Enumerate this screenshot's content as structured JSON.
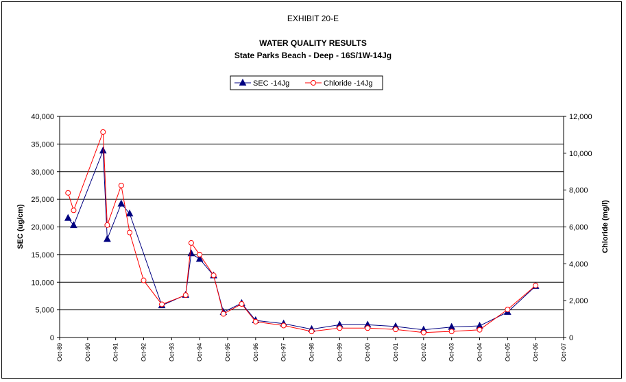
{
  "chart_data": {
    "type": "line",
    "exhibit": "EXHIBIT 20-E",
    "title": "WATER QUALITY RESULTS",
    "subtitle": "State Parks Beach - Deep - 16S/1W-14Jg",
    "ylabel": "SEC (ug/cm)",
    "y2label": "Chloride (mg/l)",
    "ylim": [
      0,
      40000
    ],
    "y2lim": [
      0,
      12000
    ],
    "yticks": [
      "0",
      "5,000",
      "10,000",
      "15,000",
      "20,000",
      "25,000",
      "30,000",
      "35,000",
      "40,000"
    ],
    "y2ticks": [
      "0",
      "2,000",
      "4,000",
      "6,000",
      "8,000",
      "10,000",
      "12,000"
    ],
    "xticks": [
      "Oct-89",
      "Oct-90",
      "Oct-91",
      "Oct-92",
      "Oct-93",
      "Oct-94",
      "Oct-95",
      "Oct-96",
      "Oct-97",
      "Oct-98",
      "Oct-99",
      "Oct-00",
      "Oct-01",
      "Oct-02",
      "Oct-03",
      "Oct-04",
      "Oct-05",
      "Oct-06",
      "Oct-07"
    ],
    "xlim": [
      1989.75,
      2007.75
    ],
    "grid": true,
    "legend_position": "top-center",
    "series": [
      {
        "name": "SEC -14Jg",
        "axis": "left",
        "color": "#000080",
        "marker": "triangle",
        "x": [
          1990.05,
          1990.25,
          1991.3,
          1991.45,
          1991.95,
          1992.25,
          1993.4,
          1994.25,
          1994.45,
          1994.75,
          1995.25,
          1995.6,
          1996.25,
          1996.75,
          1997.75,
          1998.75,
          1999.75,
          2000.75,
          2001.75,
          2002.75,
          2003.75,
          2004.75,
          2005.75,
          2006.75
        ],
        "y": [
          21600,
          20300,
          33800,
          17800,
          24200,
          22400,
          5800,
          7700,
          15200,
          14200,
          11200,
          4600,
          6200,
          3100,
          2500,
          1500,
          2300,
          2300,
          2000,
          1400,
          1900,
          2100,
          4600,
          9300
        ]
      },
      {
        "name": "Chloride -14Jg",
        "axis": "right",
        "color": "#ff0000",
        "marker": "circle",
        "x": [
          1990.05,
          1990.25,
          1991.3,
          1991.45,
          1991.95,
          1992.25,
          1992.75,
          1993.4,
          1994.25,
          1994.45,
          1994.75,
          1995.25,
          1995.6,
          1996.25,
          1996.75,
          1997.75,
          1998.75,
          1999.75,
          2000.75,
          2001.75,
          2002.75,
          2003.75,
          2004.75,
          2005.75,
          2006.75
        ],
        "y": [
          7850,
          6900,
          11150,
          6100,
          8250,
          5700,
          3100,
          1800,
          2300,
          5130,
          4500,
          3370,
          1280,
          1820,
          860,
          650,
          330,
          510,
          510,
          440,
          270,
          330,
          420,
          1520,
          2820
        ]
      }
    ]
  }
}
